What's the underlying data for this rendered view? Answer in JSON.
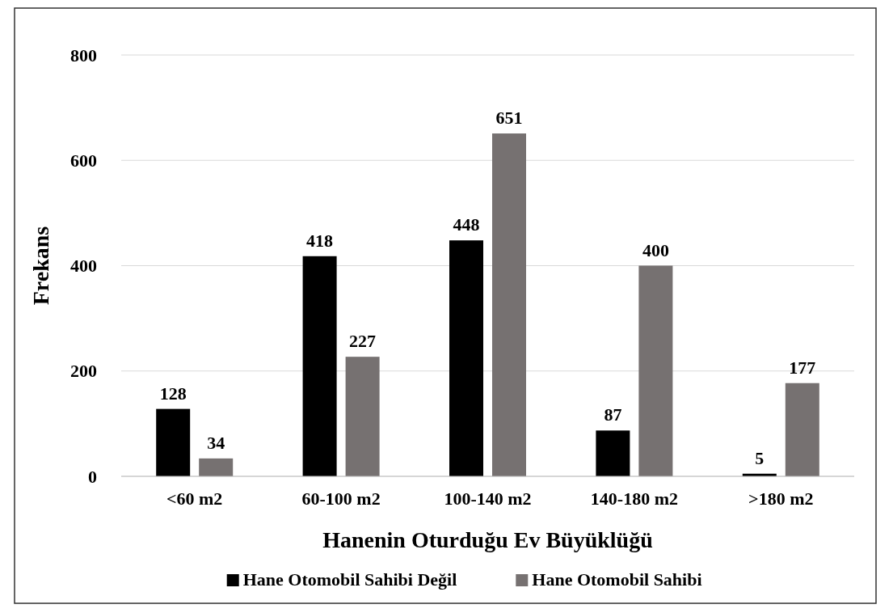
{
  "chart_data": {
    "type": "bar",
    "xlabel": "Hanenin Oturduğu Ev Büyüklüğü",
    "ylabel": "Frekans",
    "categories": [
      "<60 m2",
      "60-100 m2",
      "100-140 m2",
      "140-180 m2",
      ">180 m2"
    ],
    "series": [
      {
        "name": "Hane Otomobil Sahibi Değil",
        "color": "#000000",
        "values": [
          128,
          418,
          448,
          87,
          5
        ]
      },
      {
        "name": "Hane Otomobil Sahibi",
        "color": "#767171",
        "values": [
          34,
          227,
          651,
          400,
          177
        ]
      }
    ],
    "ylim": [
      0,
      800
    ],
    "yticks": [
      0,
      200,
      400,
      600,
      800
    ],
    "grid": "y",
    "legend": "bottom",
    "data_labels": true
  }
}
